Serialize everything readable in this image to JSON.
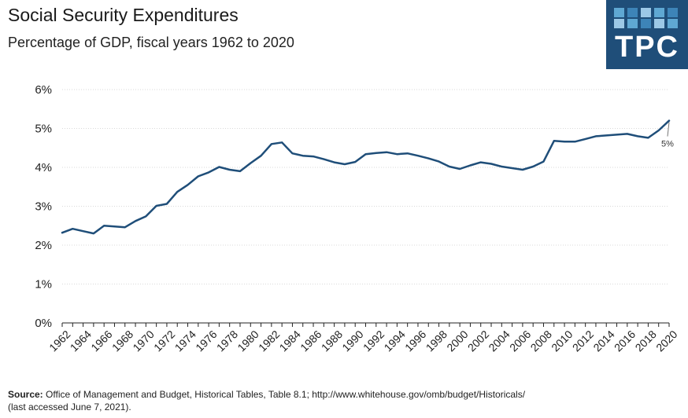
{
  "header": {
    "title": "Social Security Expenditures",
    "subtitle": "Percentage of GDP, fiscal years 1962 to 2020"
  },
  "logo": {
    "text": "TPC",
    "bg_color": "#1f4e79",
    "tile_colors": [
      "#5fa8d3",
      "#3d84b8",
      "#9cc8e6"
    ]
  },
  "source": {
    "label": "Source:",
    "text": "Office of Management and Budget, Historical Tables, Table 8.1; http://www.whitehouse.gov/omb/budget/Historicals/",
    "text2": "(last accessed June 7, 2021)."
  },
  "chart_data": {
    "type": "line",
    "title": "Social Security Expenditures",
    "subtitle": "Percentage of GDP, fiscal years 1962 to 2020",
    "xlabel": "",
    "ylabel": "",
    "x": [
      1962,
      1963,
      1964,
      1965,
      1966,
      1967,
      1968,
      1969,
      1970,
      1971,
      1972,
      1973,
      1974,
      1975,
      1976,
      1977,
      1978,
      1979,
      1980,
      1981,
      1982,
      1983,
      1984,
      1985,
      1986,
      1987,
      1988,
      1989,
      1990,
      1991,
      1992,
      1993,
      1994,
      1995,
      1996,
      1997,
      1998,
      1999,
      2000,
      2001,
      2002,
      2003,
      2004,
      2005,
      2006,
      2007,
      2008,
      2009,
      2010,
      2011,
      2012,
      2013,
      2014,
      2015,
      2016,
      2017,
      2018,
      2019,
      2020
    ],
    "series": [
      {
        "values": [
          2.32,
          2.42,
          2.36,
          2.3,
          2.5,
          2.48,
          2.46,
          2.62,
          2.74,
          3.01,
          3.06,
          3.37,
          3.55,
          3.77,
          3.87,
          4.01,
          3.94,
          3.9,
          4.11,
          4.3,
          4.6,
          4.64,
          4.36,
          4.3,
          4.28,
          4.21,
          4.13,
          4.08,
          4.14,
          4.34,
          4.37,
          4.39,
          4.34,
          4.36,
          4.3,
          4.23,
          4.15,
          4.02,
          3.96,
          4.05,
          4.13,
          4.09,
          4.02,
          3.98,
          3.94,
          4.02,
          4.15,
          4.68,
          4.66,
          4.66,
          4.73,
          4.8,
          4.82,
          4.84,
          4.86,
          4.8,
          4.76,
          4.95,
          5.2
        ],
        "color": "#1f4e79"
      }
    ],
    "xticks": [
      "1962",
      "1964",
      "1966",
      "1968",
      "1970",
      "1972",
      "1974",
      "1976",
      "1978",
      "1980",
      "1982",
      "1984",
      "1986",
      "1988",
      "1990",
      "1992",
      "1994",
      "1996",
      "1998",
      "2000",
      "2002",
      "2004",
      "2006",
      "2008",
      "2010",
      "2012",
      "2014",
      "2016",
      "2018",
      "2020"
    ],
    "yticks": [
      "0%",
      "1%",
      "2%",
      "3%",
      "4%",
      "5%",
      "6%"
    ],
    "ylim": [
      0,
      6
    ],
    "xlim": [
      1962,
      2020
    ],
    "grid": true,
    "annotation": {
      "x": 2020,
      "y": 5.2,
      "text": "5%"
    }
  }
}
